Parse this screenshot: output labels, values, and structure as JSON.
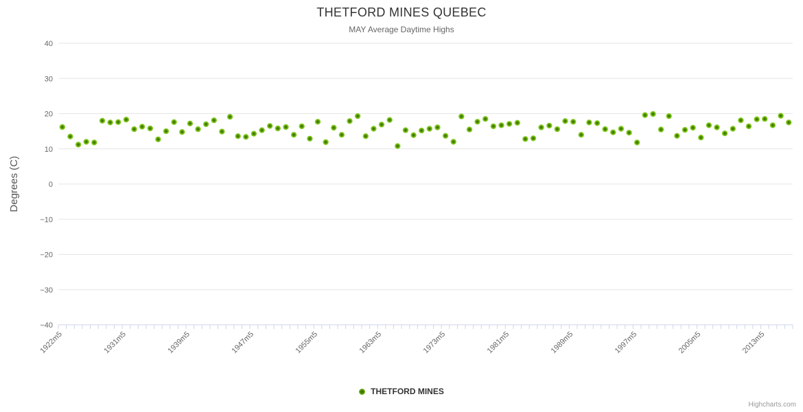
{
  "header": {
    "title": "THETFORD MINES QUEBEC",
    "subtitle": "MAY Average Daytime Highs"
  },
  "legend": {
    "label": "THETFORD MINES"
  },
  "credits": {
    "label": "Highcharts.com"
  },
  "colors": {
    "background": "#ffffff",
    "grid": "#e6e6e6",
    "axis_line": "#ccd6eb",
    "tick": "#ccd6eb",
    "title_text": "#333333",
    "subtitle_text": "#666666",
    "axis_label_text": "#666666",
    "axis_title_text": "#555555",
    "legend_text": "#333333",
    "credits_text": "#999999",
    "marker_core": "#2e5c00",
    "marker_mid": "#4c8600",
    "marker_edge": "#7cc41e",
    "marker_rim": "#8ed32e"
  },
  "chart_data": {
    "type": "scatter",
    "title": "THETFORD MINES QUEBEC",
    "subtitle": "MAY Average Daytime Highs",
    "xlabel": "",
    "ylabel": "Degrees (C)",
    "ylim": [
      -40,
      40
    ],
    "ytick_interval": 10,
    "grid": true,
    "legend_position": "bottom-center",
    "marker_radius": 4.2,
    "xtick_labels": [
      "1922m5",
      "1931m5",
      "1939m5",
      "1947m5",
      "1955m5",
      "1963m5",
      "1973m5",
      "1981m5",
      "1989m5",
      "1997m5",
      "2005m5",
      "2013m5"
    ],
    "xtick_label_every": 8,
    "x_categories": [
      "1922m5",
      "1924m5",
      "1925m5",
      "1926m5",
      "1927m5",
      "1928m5",
      "1929m5",
      "1930m5",
      "1931m5",
      "1932m5",
      "1933m5",
      "1934m5",
      "1935m5",
      "1936m5",
      "1937m5",
      "1938m5",
      "1939m5",
      "1940m5",
      "1941m5",
      "1942m5",
      "1943m5",
      "1944m5",
      "1945m5",
      "1946m5",
      "1947m5",
      "1948m5",
      "1949m5",
      "1950m5",
      "1951m5",
      "1952m5",
      "1953m5",
      "1954m5",
      "1955m5",
      "1956m5",
      "1957m5",
      "1958m5",
      "1959m5",
      "1960m5",
      "1961m5",
      "1962m5",
      "1963m5",
      "1966m5",
      "1967m5",
      "1968m5",
      "1969m5",
      "1970m5",
      "1971m5",
      "1972m5",
      "1973m5",
      "1974m5",
      "1975m5",
      "1976m5",
      "1977m5",
      "1978m5",
      "1979m5",
      "1980m5",
      "1981m5",
      "1982m5",
      "1983m5",
      "1984m5",
      "1985m5",
      "1986m5",
      "1987m5",
      "1988m5",
      "1989m5",
      "1990m5",
      "1991m5",
      "1992m5",
      "1993m5",
      "1994m5",
      "1995m5",
      "1996m5",
      "1997m5",
      "1998m5",
      "1999m5",
      "2000m5",
      "2001m5",
      "2002m5",
      "2003m5",
      "2004m5",
      "2005m5",
      "2006m5",
      "2007m5",
      "2008m5",
      "2009m5",
      "2010m5",
      "2011m5",
      "2012m5",
      "2013m5",
      "2014m5",
      "2015m5",
      "2016m5"
    ],
    "series": [
      {
        "name": "THETFORD MINES",
        "values": [
          16.2,
          13.5,
          11.2,
          12.0,
          11.8,
          18.0,
          17.5,
          17.6,
          18.3,
          15.6,
          16.3,
          15.8,
          12.7,
          15.0,
          17.6,
          14.8,
          17.2,
          15.6,
          17.0,
          18.1,
          14.9,
          19.1,
          13.6,
          13.4,
          14.3,
          15.3,
          16.5,
          15.8,
          16.2,
          14.0,
          16.4,
          12.9,
          17.7,
          11.9,
          16.0,
          14.0,
          17.9,
          19.3,
          13.6,
          15.7,
          16.9,
          18.2,
          10.8,
          15.3,
          13.9,
          15.2,
          15.7,
          16.1,
          13.7,
          12.0,
          19.2,
          15.5,
          17.7,
          18.5,
          16.4,
          16.7,
          17.1,
          17.4,
          12.8,
          13.0,
          16.1,
          16.6,
          15.6,
          17.9,
          17.7,
          14.0,
          17.5,
          17.3,
          15.6,
          14.7,
          15.7,
          14.6,
          11.8,
          19.6,
          19.9,
          15.5,
          19.3,
          13.7,
          15.4,
          16.0,
          13.2,
          16.7,
          16.1,
          14.4,
          15.7,
          18.1,
          16.4,
          18.4,
          18.5,
          16.7,
          19.4,
          17.5
        ]
      }
    ]
  }
}
